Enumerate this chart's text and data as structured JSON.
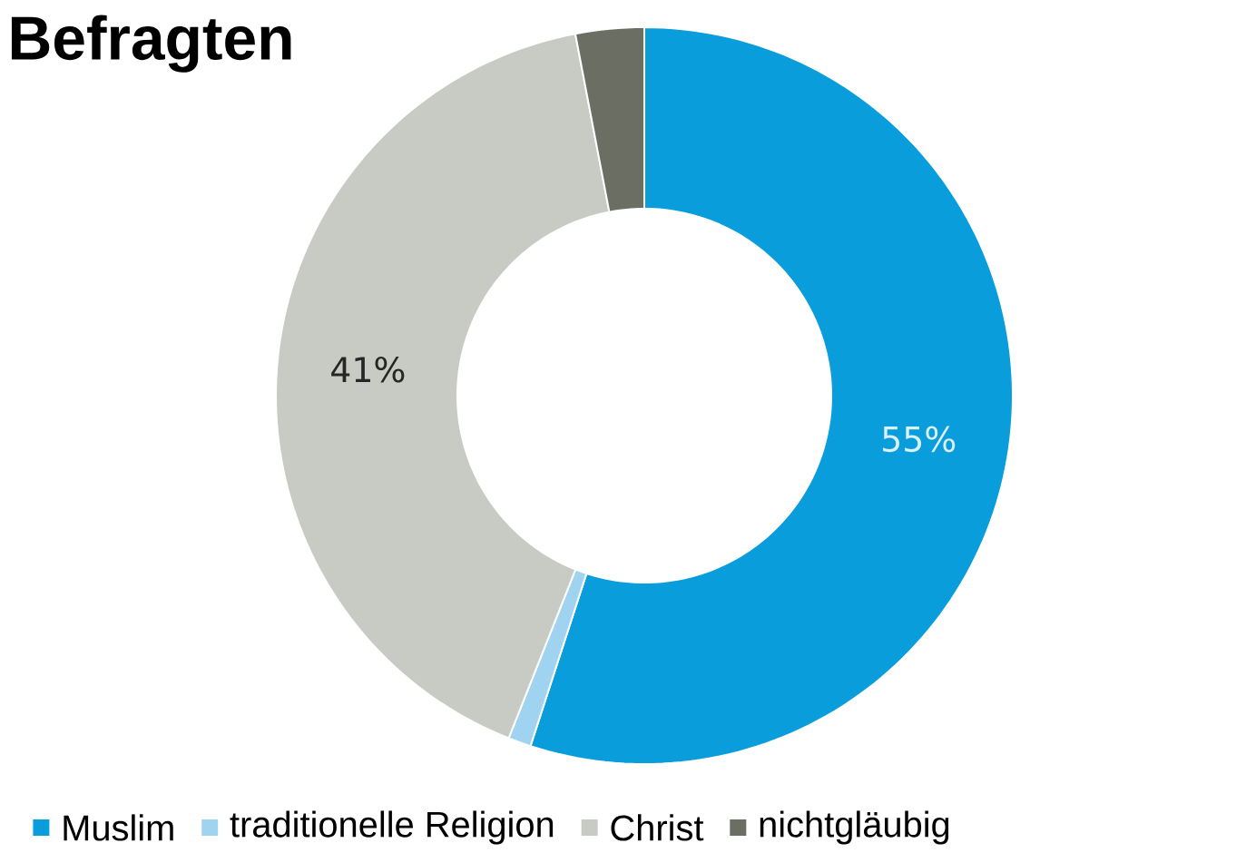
{
  "chart_data": {
    "type": "donut",
    "title": "Befragten",
    "categories": [
      "Muslim",
      "traditionelle Religion",
      "Christ",
      "nichtgläubig"
    ],
    "values": [
      55,
      1,
      41,
      3
    ],
    "colors": [
      "#0a9ddb",
      "#9fd3f0",
      "#c8cac4",
      "#6b6f63"
    ],
    "value_labels": [
      "55%",
      null,
      "41%",
      null
    ],
    "legend": "bottom"
  }
}
